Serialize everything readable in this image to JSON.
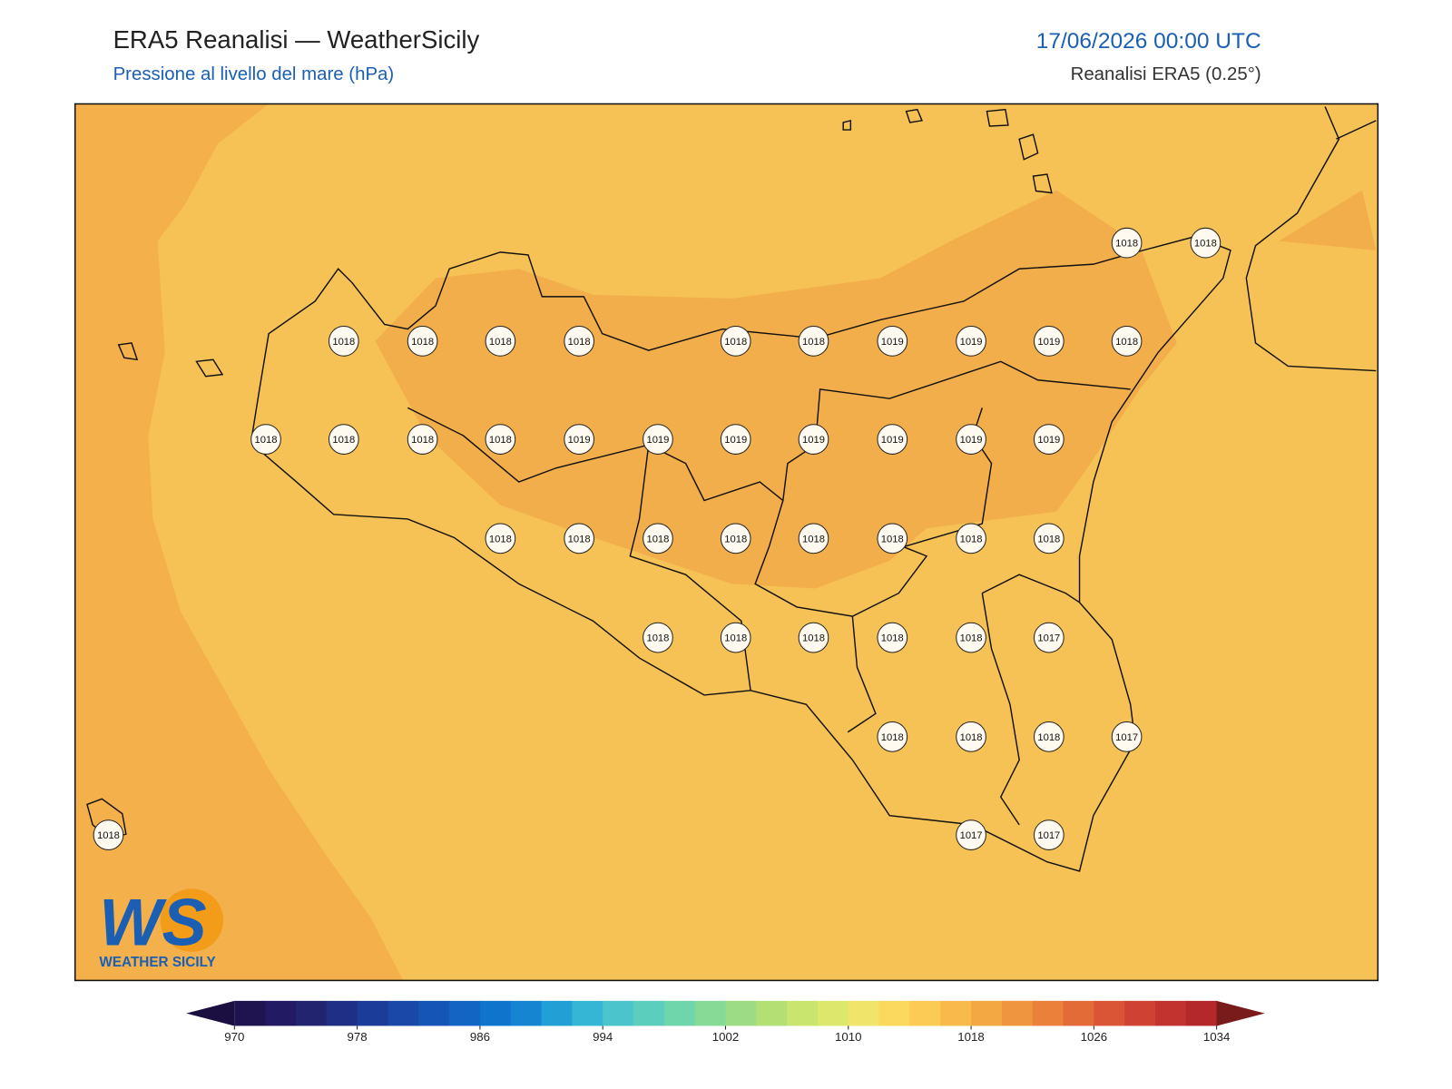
{
  "header": {
    "title": "ERA5 Reanalisi — WeatherSicily",
    "subtitle": "Pressione al livello del mare (hPa)",
    "date": "17/06/2026 00:00 UTC",
    "source": "Reanalisi ERA5 (0.25°)"
  },
  "stations": [
    1018,
    1018,
    1018,
    1018,
    1018,
    1018,
    1018,
    1018,
    1019,
    1019,
    1019,
    1018,
    1018,
    1018,
    1018,
    1018,
    1019,
    1019,
    1019,
    1019,
    1019,
    1019,
    1019,
    1018,
    1018,
    1018,
    1018,
    1018,
    1018,
    1018,
    1018,
    1018,
    1018,
    1018,
    1018,
    1018,
    1017,
    1018,
    1018,
    1018,
    1017,
    1018,
    1017,
    1017
  ],
  "colorbar": {
    "ticks": [
      970,
      978,
      986,
      994,
      1002,
      1010,
      1018,
      1026,
      1034
    ],
    "colors": [
      "#1f1450",
      "#221a62",
      "#232470",
      "#1f2f85",
      "#1b3c98",
      "#1848a8",
      "#1556b5",
      "#1265c2",
      "#0f74cc",
      "#1585d2",
      "#22a0d6",
      "#35b6d4",
      "#4cc4cc",
      "#5ccebd",
      "#6fd6ac",
      "#86da96",
      "#9ddc84",
      "#b3e075",
      "#c9e56d",
      "#dce86c",
      "#f0e46a",
      "#fbd95f",
      "#fccb55",
      "#f8bb4b",
      "#f3a844",
      "#ef9540",
      "#ea813b",
      "#e36b37",
      "#da5535",
      "#cf4233",
      "#c23330",
      "#b4272b"
    ],
    "under": "#1a0f40",
    "over": "#7a1b1b"
  },
  "logo": {
    "mark": "WS",
    "text": "WEATHER SICILY"
  }
}
